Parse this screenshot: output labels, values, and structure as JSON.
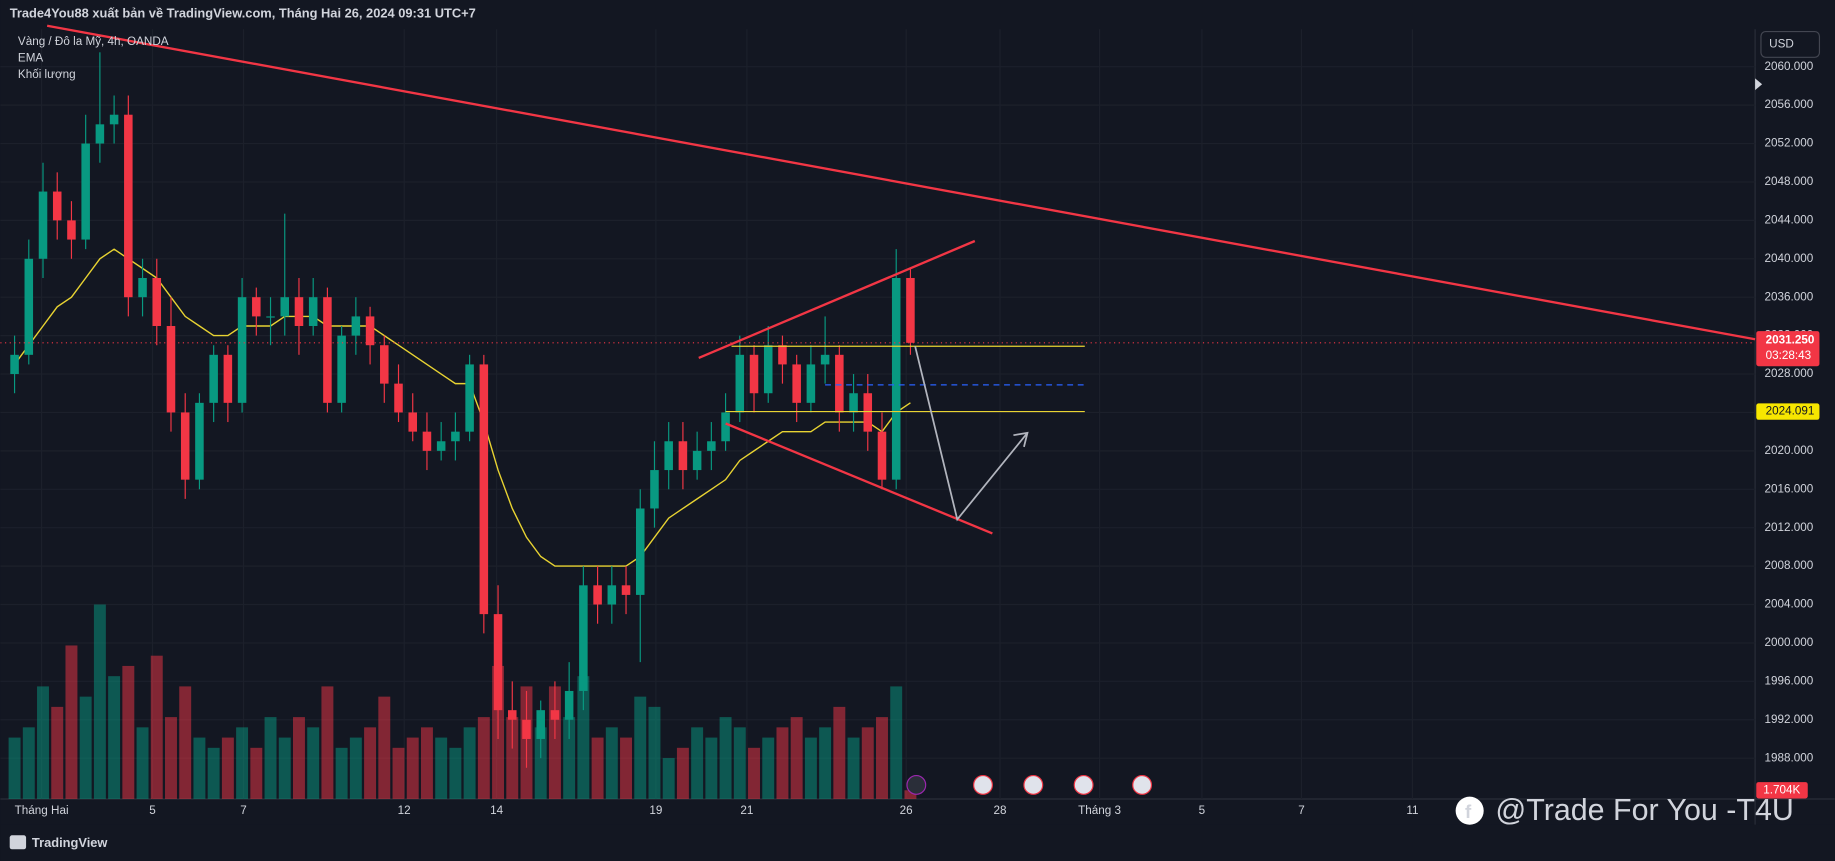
{
  "chart_data": {
    "type": "candlestick",
    "title": "Trade4You88 xuất bản về TradingView.com, Tháng Hai 26, 2024 09:31 UTC+7",
    "legend": [
      "Vàng / Đô la Mỹ, 4h, OANDA",
      "EMA",
      "Khối lượng"
    ],
    "currency": "USD",
    "brand": "TradingView",
    "watermark": "@Trade For You -T4U",
    "up_color": "#089981",
    "down_color": "#f23645",
    "ema_color": "#e8d332",
    "open": [
      2028,
      2030,
      2040,
      2047,
      2044,
      2042,
      2052,
      2054,
      2055,
      2036,
      2038,
      2033,
      2024,
      2017,
      2025,
      2030,
      2025,
      2036,
      2034,
      2034,
      2036,
      2033,
      2036,
      2025,
      2032,
      2034,
      2031,
      2027,
      2024,
      2022,
      2020,
      2021,
      2022,
      2029,
      2003,
      1993,
      1992,
      1990,
      1993,
      1992,
      1995,
      2006,
      2004,
      2006,
      2005,
      2014,
      2018,
      2021,
      2018,
      2020,
      2021,
      2024,
      2030,
      2026,
      2031,
      2029,
      2025,
      2029,
      2030,
      2024,
      2026,
      2022,
      2017,
      2038
    ],
    "high": [
      2032,
      2042,
      2050,
      2049,
      2046,
      2055,
      2061.5,
      2057,
      2057,
      2040,
      2040,
      2036,
      2026,
      2026,
      2031,
      2031,
      2038,
      2037,
      2036,
      2044.7,
      2038,
      2038,
      2037,
      2033,
      2036,
      2035,
      2032,
      2029,
      2026,
      2024,
      2023,
      2024,
      2030,
      2030,
      2006,
      1996,
      1995,
      1994,
      1996,
      1998,
      2008,
      2008,
      2008,
      2008,
      2016,
      2021,
      2023,
      2023,
      2022,
      2023,
      2026,
      2032,
      2031,
      2033,
      2032,
      2030,
      2031,
      2034,
      2031,
      2028,
      2028,
      2024,
      2041,
      2039
    ],
    "low": [
      2026,
      2029,
      2038,
      2042,
      2040,
      2041,
      2050,
      2052,
      2034,
      2034,
      2031,
      2022,
      2015,
      2016,
      2023,
      2023,
      2024,
      2032,
      2031,
      2032,
      2030,
      2032,
      2024,
      2024,
      2030,
      2029,
      2025,
      2023,
      2021,
      2018,
      2019,
      2019,
      2021,
      2001,
      1990,
      1989,
      1987,
      1988,
      1990,
      1990,
      1993,
      2002,
      2002,
      2003,
      1998,
      2012,
      2016,
      2016,
      2017,
      2018,
      2020,
      2023,
      2024,
      2025,
      2027,
      2023,
      2024,
      2027,
      2022,
      2022,
      2020,
      2016,
      2016,
      2030
    ],
    "close": [
      2030,
      2040,
      2047,
      2044,
      2042,
      2052,
      2054,
      2055,
      2036,
      2038,
      2033,
      2024,
      2017,
      2025,
      2030,
      2025,
      2036,
      2034,
      2034,
      2036,
      2033,
      2036,
      2025,
      2032,
      2034,
      2031,
      2027,
      2024,
      2022,
      2020,
      2021,
      2022,
      2029,
      2003,
      1993,
      1992,
      1990,
      1993,
      1992,
      1995,
      2006,
      2004,
      2006,
      2005,
      2014,
      2018,
      2021,
      2018,
      2020,
      2021,
      2024,
      2030,
      2026,
      2031,
      2029,
      2025,
      2029,
      2030,
      2024,
      2026,
      2022,
      2017,
      2038,
      2031.25
    ],
    "ema": [
      2029,
      2031,
      2033,
      2035,
      2036,
      2038,
      2040,
      2041,
      2040,
      2039,
      2038,
      2036,
      2034,
      2033,
      2032,
      2032,
      2033,
      2033,
      2033,
      2034,
      2034,
      2034,
      2033,
      2033,
      2033,
      2033,
      2032,
      2031,
      2030,
      2029,
      2028,
      2027,
      2027,
      2023,
      2018,
      2014,
      2011,
      2009,
      2008,
      2008,
      2008,
      2008,
      2008,
      2008,
      2009,
      2011,
      2013,
      2014,
      2015,
      2016,
      2017,
      2019,
      2020,
      2021,
      2022,
      2022,
      2022,
      2023,
      2023,
      2023,
      2023,
      2022,
      2024,
      2025
    ],
    "volume": [
      12000,
      14000,
      22000,
      18000,
      30000,
      20000,
      38000,
      24000,
      26000,
      14000,
      28000,
      16000,
      22000,
      12000,
      10000,
      12000,
      14000,
      10000,
      16000,
      12000,
      16000,
      14000,
      22000,
      10000,
      12000,
      14000,
      20000,
      10000,
      12000,
      14000,
      12000,
      10000,
      14000,
      16000,
      26000,
      16000,
      22000,
      14000,
      22000,
      16000,
      24000,
      12000,
      14000,
      12000,
      20000,
      18000,
      8000,
      10000,
      14000,
      12000,
      16000,
      14000,
      10000,
      12000,
      14000,
      16000,
      12000,
      14000,
      18000,
      12000,
      14000,
      16000,
      22000,
      1704
    ],
    "close_last_label": "2031.250",
    "countdown": "03:28:43",
    "volume_last_label": "1.704K",
    "hline": {
      "value": 2024.091,
      "label": "2024.091"
    },
    "vlim": [
      0,
      40000
    ],
    "ylim": [
      1983.75,
      2063.9
    ],
    "yticks": [
      {
        "value": 1988,
        "label": "1988.000"
      },
      {
        "value": 1992,
        "label": "1992.000"
      },
      {
        "value": 1996,
        "label": "1996.000"
      },
      {
        "value": 2000,
        "label": "2000.000"
      },
      {
        "value": 2004,
        "label": "2004.000"
      },
      {
        "value": 2008,
        "label": "2008.000"
      },
      {
        "value": 2012,
        "label": "2012.000"
      },
      {
        "value": 2016,
        "label": "2016.000"
      },
      {
        "value": 2020,
        "label": "2020.000"
      },
      {
        "value": 2024,
        "label": "2024.000"
      },
      {
        "value": 2028,
        "label": "2028.000"
      },
      {
        "value": 2032,
        "label": "2032.000"
      },
      {
        "value": 2036,
        "label": "2036.000"
      },
      {
        "value": 2040,
        "label": "2040.000"
      },
      {
        "value": 2044,
        "label": "2044.000"
      },
      {
        "value": 2048,
        "label": "2048.000"
      },
      {
        "value": 2052,
        "label": "2052.000"
      },
      {
        "value": 2056,
        "label": "2056.000"
      },
      {
        "value": 2060,
        "label": "2060.000"
      }
    ],
    "xlim": [
      -1,
      122.4
    ],
    "xticks": [
      {
        "value": 1.9,
        "label": "Tháng Hai"
      },
      {
        "value": 9.7,
        "label": "5"
      },
      {
        "value": 16.1,
        "label": "7"
      },
      {
        "value": 27.4,
        "label": "12"
      },
      {
        "value": 33.9,
        "label": "14"
      },
      {
        "value": 45.1,
        "label": "19"
      },
      {
        "value": 51.5,
        "label": "21"
      },
      {
        "value": 62.7,
        "label": "26"
      },
      {
        "value": 69.3,
        "label": "28"
      },
      {
        "value": 76.3,
        "label": "Tháng 3"
      },
      {
        "value": 83.5,
        "label": "5"
      },
      {
        "value": 90.5,
        "label": "7"
      },
      {
        "value": 98.3,
        "label": "11"
      }
    ]
  }
}
